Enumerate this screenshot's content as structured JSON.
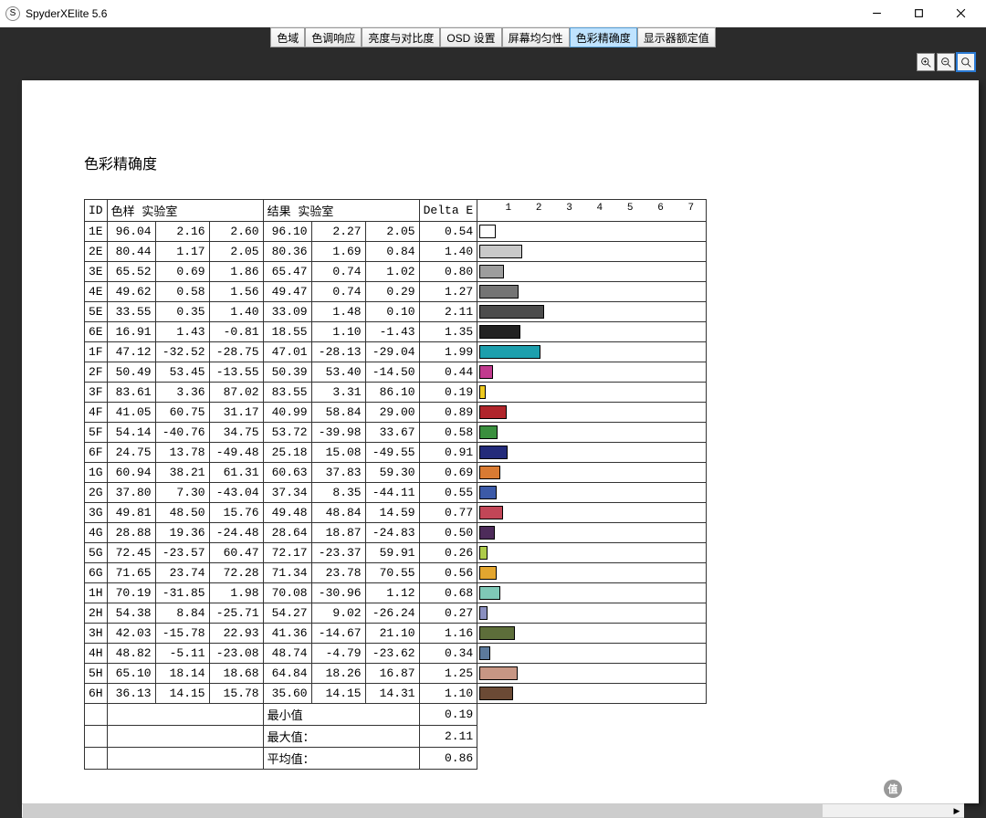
{
  "window": {
    "title": "SpyderXElite 5.6",
    "icon_letter": "S"
  },
  "tabs": [
    "色域",
    "色调响应",
    "亮度与对比度",
    "OSD 设置",
    "屏幕均匀性",
    "色彩精确度",
    "显示器额定值"
  ],
  "active_tab_index": 5,
  "page_title": "色彩精确度",
  "headers": {
    "id": "ID",
    "sample": "色样 实验室",
    "result": "结果 实验室",
    "delta": "Delta E"
  },
  "chart": {
    "max": 7.5,
    "ticks": [
      1,
      2,
      3,
      4,
      5,
      6,
      7
    ]
  },
  "rows": [
    {
      "id": "1E",
      "s1": "96.04",
      "s2": "2.16",
      "s3": "2.60",
      "r1": "96.10",
      "r2": "2.27",
      "r3": "2.05",
      "de": "0.54",
      "bar": 0.54,
      "color": "#fefefe"
    },
    {
      "id": "2E",
      "s1": "80.44",
      "s2": "1.17",
      "s3": "2.05",
      "r1": "80.36",
      "r2": "1.69",
      "r3": "0.84",
      "de": "1.40",
      "bar": 1.4,
      "color": "#c9c9c9"
    },
    {
      "id": "3E",
      "s1": "65.52",
      "s2": "0.69",
      "s3": "1.86",
      "r1": "65.47",
      "r2": "0.74",
      "r3": "1.02",
      "de": "0.80",
      "bar": 0.8,
      "color": "#9d9d9d"
    },
    {
      "id": "4E",
      "s1": "49.62",
      "s2": "0.58",
      "s3": "1.56",
      "r1": "49.47",
      "r2": "0.74",
      "r3": "0.29",
      "de": "1.27",
      "bar": 1.27,
      "color": "#747474"
    },
    {
      "id": "5E",
      "s1": "33.55",
      "s2": "0.35",
      "s3": "1.40",
      "r1": "33.09",
      "r2": "1.48",
      "r3": "0.10",
      "de": "2.11",
      "bar": 2.11,
      "color": "#4c4c4c"
    },
    {
      "id": "6E",
      "s1": "16.91",
      "s2": "1.43",
      "s3": "-0.81",
      "r1": "18.55",
      "r2": "1.10",
      "r3": "-1.43",
      "de": "1.35",
      "bar": 1.35,
      "color": "#222222"
    },
    {
      "id": "1F",
      "s1": "47.12",
      "s2": "-32.52",
      "s3": "-28.75",
      "r1": "47.01",
      "r2": "-28.13",
      "r3": "-29.04",
      "de": "1.99",
      "bar": 1.99,
      "color": "#1d9fad"
    },
    {
      "id": "2F",
      "s1": "50.49",
      "s2": "53.45",
      "s3": "-13.55",
      "r1": "50.39",
      "r2": "53.40",
      "r3": "-14.50",
      "de": "0.44",
      "bar": 0.44,
      "color": "#c13a8e"
    },
    {
      "id": "3F",
      "s1": "83.61",
      "s2": "3.36",
      "s3": "87.02",
      "r1": "83.55",
      "r2": "3.31",
      "r3": "86.10",
      "de": "0.19",
      "bar": 0.19,
      "color": "#eec91e"
    },
    {
      "id": "4F",
      "s1": "41.05",
      "s2": "60.75",
      "s3": "31.17",
      "r1": "40.99",
      "r2": "58.84",
      "r3": "29.00",
      "de": "0.89",
      "bar": 0.89,
      "color": "#b0252b"
    },
    {
      "id": "5F",
      "s1": "54.14",
      "s2": "-40.76",
      "s3": "34.75",
      "r1": "53.72",
      "r2": "-39.98",
      "r3": "33.67",
      "de": "0.58",
      "bar": 0.58,
      "color": "#3a8f3e"
    },
    {
      "id": "6F",
      "s1": "24.75",
      "s2": "13.78",
      "s3": "-49.48",
      "r1": "25.18",
      "r2": "15.08",
      "r3": "-49.55",
      "de": "0.91",
      "bar": 0.91,
      "color": "#232b7a"
    },
    {
      "id": "1G",
      "s1": "60.94",
      "s2": "38.21",
      "s3": "61.31",
      "r1": "60.63",
      "r2": "37.83",
      "r3": "59.30",
      "de": "0.69",
      "bar": 0.69,
      "color": "#d97b33"
    },
    {
      "id": "2G",
      "s1": "37.80",
      "s2": "7.30",
      "s3": "-43.04",
      "r1": "37.34",
      "r2": "8.35",
      "r3": "-44.11",
      "de": "0.55",
      "bar": 0.55,
      "color": "#3c5aa8"
    },
    {
      "id": "3G",
      "s1": "49.81",
      "s2": "48.50",
      "s3": "15.76",
      "r1": "49.48",
      "r2": "48.84",
      "r3": "14.59",
      "de": "0.77",
      "bar": 0.77,
      "color": "#c24657"
    },
    {
      "id": "4G",
      "s1": "28.88",
      "s2": "19.36",
      "s3": "-24.48",
      "r1": "28.64",
      "r2": "18.87",
      "r3": "-24.83",
      "de": "0.50",
      "bar": 0.5,
      "color": "#4d2b5a"
    },
    {
      "id": "5G",
      "s1": "72.45",
      "s2": "-23.57",
      "s3": "60.47",
      "r1": "72.17",
      "r2": "-23.37",
      "r3": "59.91",
      "de": "0.26",
      "bar": 0.26,
      "color": "#aecb4a"
    },
    {
      "id": "6G",
      "s1": "71.65",
      "s2": "23.74",
      "s3": "72.28",
      "r1": "71.34",
      "r2": "23.78",
      "r3": "70.55",
      "de": "0.56",
      "bar": 0.56,
      "color": "#e3a62f"
    },
    {
      "id": "1H",
      "s1": "70.19",
      "s2": "-31.85",
      "s3": "1.98",
      "r1": "70.08",
      "r2": "-30.96",
      "r3": "1.12",
      "de": "0.68",
      "bar": 0.68,
      "color": "#7fc9b7"
    },
    {
      "id": "2H",
      "s1": "54.38",
      "s2": "8.84",
      "s3": "-25.71",
      "r1": "54.27",
      "r2": "9.02",
      "r3": "-26.24",
      "de": "0.27",
      "bar": 0.27,
      "color": "#8a8fc0"
    },
    {
      "id": "3H",
      "s1": "42.03",
      "s2": "-15.78",
      "s3": "22.93",
      "r1": "41.36",
      "r2": "-14.67",
      "r3": "21.10",
      "de": "1.16",
      "bar": 1.16,
      "color": "#5d6e3a"
    },
    {
      "id": "4H",
      "s1": "48.82",
      "s2": "-5.11",
      "s3": "-23.08",
      "r1": "48.74",
      "r2": "-4.79",
      "r3": "-23.62",
      "de": "0.34",
      "bar": 0.34,
      "color": "#5c7a9c"
    },
    {
      "id": "5H",
      "s1": "65.10",
      "s2": "18.14",
      "s3": "18.68",
      "r1": "64.84",
      "r2": "18.26",
      "r3": "16.87",
      "de": "1.25",
      "bar": 1.25,
      "color": "#c79684"
    },
    {
      "id": "6H",
      "s1": "36.13",
      "s2": "14.15",
      "s3": "15.78",
      "r1": "35.60",
      "r2": "14.15",
      "r3": "14.31",
      "de": "1.10",
      "bar": 1.1,
      "color": "#6b4a35"
    }
  ],
  "summary": [
    {
      "label": "最小值",
      "value": "0.19"
    },
    {
      "label": "最大值：",
      "value": "2.11"
    },
    {
      "label": "平均值：",
      "value": "0.86"
    }
  ],
  "watermark": "什么值得买"
}
